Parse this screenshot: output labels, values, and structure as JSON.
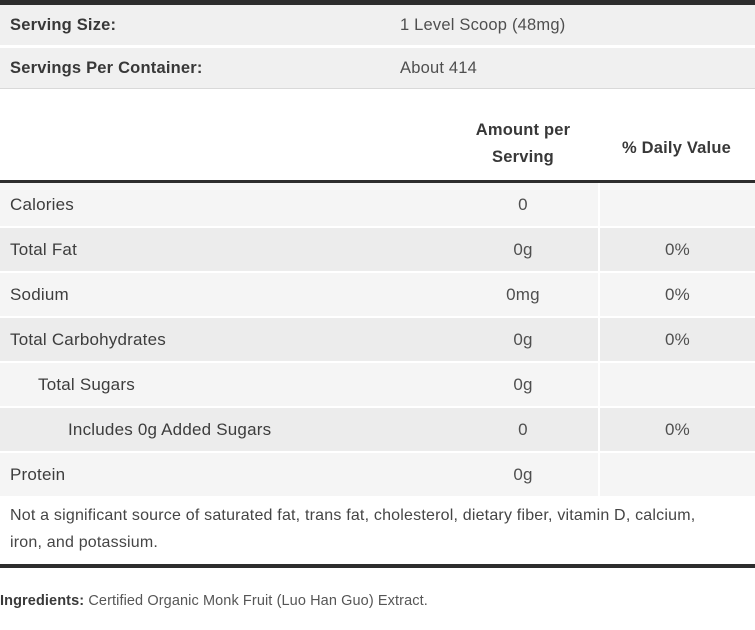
{
  "colors": {
    "rule_dark": "#2d2d2d",
    "row_light": "#f5f5f5",
    "row_dark": "#ececec",
    "serving_row_bg": "#f0f0f0",
    "text_primary": "#3d3d3d",
    "text_secondary": "#4f4f4f"
  },
  "serving_info": {
    "rows": [
      {
        "label": "Serving Size:",
        "value": "1 Level Scoop (48mg)"
      },
      {
        "label": "Servings Per Container:",
        "value": "About 414"
      }
    ]
  },
  "table": {
    "headers": {
      "amount": "Amount per Serving",
      "daily": "% Daily Value"
    },
    "rows": [
      {
        "label": "Calories",
        "amount": "0",
        "daily": "",
        "indent": 0
      },
      {
        "label": "Total Fat",
        "amount": "0g",
        "daily": "0%",
        "indent": 0
      },
      {
        "label": "Sodium",
        "amount": "0mg",
        "daily": "0%",
        "indent": 0
      },
      {
        "label": "Total Carbohydrates",
        "amount": "0g",
        "daily": "0%",
        "indent": 0
      },
      {
        "label": "Total Sugars",
        "amount": "0g",
        "daily": "",
        "indent": 1
      },
      {
        "label": "Includes 0g Added Sugars",
        "amount": "0",
        "daily": "0%",
        "indent": 2
      },
      {
        "label": "Protein",
        "amount": "0g",
        "daily": "",
        "indent": 0
      }
    ],
    "footnote": "Not a significant source of saturated fat, trans fat, cholesterol, dietary fiber, vitamin D, calcium, iron, and potassium."
  },
  "ingredients": {
    "label": "Ingredients:",
    "value": "Certified Organic Monk Fruit (Luo Han Guo) Extract."
  }
}
